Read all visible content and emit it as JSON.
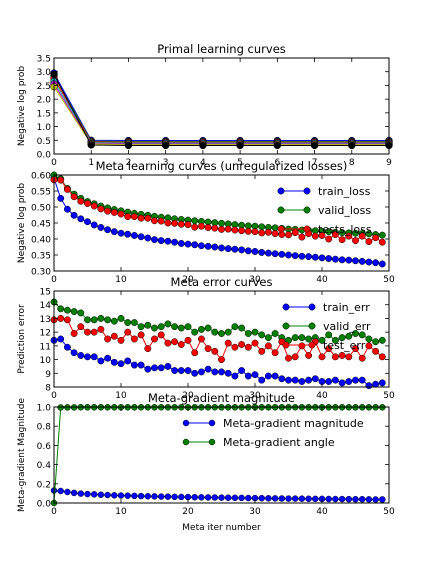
{
  "chart_data": [
    {
      "type": "line",
      "title": "Primal learning curves",
      "xlabel": "",
      "ylabel": "Negative log prob",
      "xlim": [
        0,
        9
      ],
      "ylim": [
        0.0,
        3.5
      ],
      "xticks": [
        0,
        1,
        2,
        3,
        4,
        5,
        6,
        7,
        8,
        9
      ],
      "yticks": [
        0.0,
        0.5,
        1.0,
        1.5,
        2.0,
        2.5,
        3.0,
        3.5
      ],
      "grid": false,
      "colors": [
        "#0000ff",
        "#008000",
        "#ff0000",
        "#00bfbf",
        "#bf00bf",
        "#bfbf00",
        "#000000"
      ],
      "x": [
        0,
        1,
        2,
        3,
        4,
        5,
        6,
        7,
        8,
        9
      ],
      "series": [
        {
          "values": [
            2.95,
            0.5,
            0.49,
            0.49,
            0.49,
            0.49,
            0.49,
            0.49,
            0.49,
            0.49
          ]
        },
        {
          "values": [
            2.85,
            0.47,
            0.46,
            0.46,
            0.46,
            0.46,
            0.46,
            0.46,
            0.46,
            0.46
          ]
        },
        {
          "values": [
            2.75,
            0.44,
            0.43,
            0.43,
            0.43,
            0.43,
            0.43,
            0.43,
            0.43,
            0.43
          ]
        },
        {
          "values": [
            2.65,
            0.41,
            0.4,
            0.4,
            0.4,
            0.4,
            0.4,
            0.4,
            0.4,
            0.4
          ]
        },
        {
          "values": [
            2.55,
            0.38,
            0.37,
            0.37,
            0.37,
            0.37,
            0.37,
            0.37,
            0.37,
            0.37
          ]
        },
        {
          "values": [
            2.45,
            0.36,
            0.34,
            0.34,
            0.34,
            0.34,
            0.34,
            0.34,
            0.34,
            0.34
          ]
        },
        {
          "values": [
            2.9,
            0.33,
            0.31,
            0.31,
            0.31,
            0.31,
            0.31,
            0.31,
            0.31,
            0.31
          ]
        }
      ]
    },
    {
      "type": "line",
      "title": "Meta learning curves (unregularized losses)",
      "xlabel": "",
      "ylabel": "Negative log prob",
      "xlim": [
        0,
        50
      ],
      "ylim": [
        0.3,
        0.6
      ],
      "xticks": [
        0,
        10,
        20,
        30,
        40,
        50
      ],
      "yticks": [
        0.3,
        0.35,
        0.4,
        0.45,
        0.5,
        0.55,
        0.6
      ],
      "grid": false,
      "legend": "upper right",
      "x": [
        0,
        1,
        2,
        3,
        4,
        5,
        6,
        7,
        8,
        9,
        10,
        11,
        12,
        13,
        14,
        15,
        16,
        17,
        18,
        19,
        20,
        21,
        22,
        23,
        24,
        25,
        26,
        27,
        28,
        29,
        30,
        31,
        32,
        33,
        34,
        35,
        36,
        37,
        38,
        39,
        40,
        41,
        42,
        43,
        44,
        45,
        46,
        47,
        48,
        49
      ],
      "series": [
        {
          "name": "train_loss",
          "color": "#0000ff",
          "values": [
            0.59,
            0.527,
            0.493,
            0.474,
            0.463,
            0.454,
            0.444,
            0.436,
            0.429,
            0.423,
            0.418,
            0.415,
            0.411,
            0.407,
            0.403,
            0.398,
            0.395,
            0.393,
            0.39,
            0.386,
            0.384,
            0.382,
            0.379,
            0.377,
            0.375,
            0.372,
            0.37,
            0.368,
            0.366,
            0.363,
            0.361,
            0.358,
            0.356,
            0.354,
            0.352,
            0.35,
            0.348,
            0.346,
            0.345,
            0.343,
            0.341,
            0.339,
            0.337,
            0.335,
            0.334,
            0.332,
            0.33,
            0.328,
            0.326,
            0.322
          ]
        },
        {
          "name": "valid_loss",
          "color": "#008000",
          "values": [
            0.6,
            0.588,
            0.558,
            0.54,
            0.527,
            0.517,
            0.51,
            0.503,
            0.497,
            0.492,
            0.488,
            0.484,
            0.48,
            0.477,
            0.474,
            0.471,
            0.468,
            0.466,
            0.463,
            0.461,
            0.459,
            0.457,
            0.455,
            0.453,
            0.451,
            0.449,
            0.447,
            0.445,
            0.443,
            0.441,
            0.44,
            0.438,
            0.436,
            0.435,
            0.433,
            0.431,
            0.43,
            0.428,
            0.427,
            0.426,
            0.424,
            0.423,
            0.421,
            0.42,
            0.419,
            0.418,
            0.417,
            0.416,
            0.414,
            0.412
          ]
        },
        {
          "name": "tests_loss",
          "color": "#ff0000",
          "values": [
            0.585,
            0.584,
            0.555,
            0.532,
            0.518,
            0.511,
            0.503,
            0.494,
            0.487,
            0.483,
            0.478,
            0.47,
            0.47,
            0.465,
            0.465,
            0.457,
            0.456,
            0.45,
            0.449,
            0.446,
            0.445,
            0.437,
            0.44,
            0.436,
            0.434,
            0.43,
            0.431,
            0.428,
            0.426,
            0.424,
            0.423,
            0.419,
            0.421,
            0.417,
            0.414,
            0.413,
            0.42,
            0.406,
            0.417,
            0.409,
            0.411,
            0.4,
            0.414,
            0.398,
            0.409,
            0.395,
            0.409,
            0.392,
            0.404,
            0.39
          ]
        }
      ]
    },
    {
      "type": "line",
      "title": "Meta error curves",
      "xlabel": "",
      "ylabel": "Prediction error",
      "xlim": [
        0,
        50
      ],
      "ylim": [
        8,
        15
      ],
      "xticks": [
        0,
        10,
        20,
        30,
        40,
        50
      ],
      "yticks": [
        8,
        9,
        10,
        11,
        12,
        13,
        14,
        15
      ],
      "grid": false,
      "legend": "upper right",
      "x": [
        0,
        1,
        2,
        3,
        4,
        5,
        6,
        7,
        8,
        9,
        10,
        11,
        12,
        13,
        14,
        15,
        16,
        17,
        18,
        19,
        20,
        21,
        22,
        23,
        24,
        25,
        26,
        27,
        28,
        29,
        30,
        31,
        32,
        33,
        34,
        35,
        36,
        37,
        38,
        39,
        40,
        41,
        42,
        43,
        44,
        45,
        46,
        47,
        48,
        49
      ],
      "series": [
        {
          "name": "train_err",
          "color": "#0000ff",
          "values": [
            11.4,
            11.5,
            10.9,
            10.5,
            10.3,
            10.2,
            10.2,
            9.9,
            10.1,
            9.8,
            9.7,
            9.9,
            9.6,
            9.6,
            9.3,
            9.4,
            9.4,
            9.5,
            9.2,
            9.2,
            9.2,
            9.0,
            9.1,
            9.3,
            9.1,
            9.1,
            9.0,
            8.8,
            9.2,
            8.8,
            8.9,
            8.5,
            8.8,
            8.8,
            8.6,
            8.5,
            8.5,
            8.4,
            8.5,
            8.6,
            8.4,
            8.4,
            8.5,
            8.3,
            8.4,
            8.5,
            8.5,
            8.1,
            8.2,
            8.3
          ]
        },
        {
          "name": "valid_err",
          "color": "#008000",
          "values": [
            14.2,
            13.7,
            13.6,
            13.5,
            13.4,
            12.9,
            12.9,
            13.0,
            12.9,
            12.8,
            13.0,
            12.7,
            12.7,
            12.4,
            12.5,
            12.3,
            12.4,
            12.6,
            12.4,
            12.3,
            12.4,
            12.0,
            12.2,
            12.3,
            12.0,
            11.9,
            12.0,
            12.4,
            12.3,
            11.9,
            12.0,
            11.8,
            11.6,
            11.9,
            11.6,
            11.4,
            11.6,
            11.6,
            11.5,
            11.6,
            11.4,
            11.8,
            11.4,
            11.6,
            11.7,
            11.9,
            11.8,
            11.5,
            11.3,
            11.4
          ]
        },
        {
          "name": "test_err",
          "color": "#ff0000",
          "values": [
            12.9,
            13.0,
            12.9,
            11.9,
            12.4,
            12.0,
            12.0,
            12.2,
            11.5,
            11.7,
            11.4,
            12.0,
            11.5,
            11.8,
            10.8,
            11.5,
            11.8,
            11.2,
            11.3,
            11.1,
            11.4,
            10.5,
            11.5,
            10.8,
            10.6,
            10.0,
            11.2,
            10.9,
            11.1,
            10.9,
            11.2,
            10.6,
            11.0,
            10.5,
            11.3,
            10.1,
            10.2,
            11.0,
            10.3,
            11.3,
            10.2,
            10.8,
            10.2,
            10.3,
            10.2,
            10.8,
            10.1,
            11.0,
            10.6,
            10.2
          ]
        }
      ]
    },
    {
      "type": "line",
      "title": "Meta-gradient magnitude",
      "xlabel": "Meta iter number",
      "ylabel": "Meta-gradient Magnitude",
      "xlim": [
        0,
        50
      ],
      "ylim": [
        0.0,
        1.0
      ],
      "xticks": [
        0,
        10,
        20,
        30,
        40,
        50
      ],
      "yticks": [
        0.0,
        0.2,
        0.4,
        0.6,
        0.8,
        1.0
      ],
      "grid": false,
      "legend": "upper right",
      "x": [
        0,
        1,
        2,
        3,
        4,
        5,
        6,
        7,
        8,
        9,
        10,
        11,
        12,
        13,
        14,
        15,
        16,
        17,
        18,
        19,
        20,
        21,
        22,
        23,
        24,
        25,
        26,
        27,
        28,
        29,
        30,
        31,
        32,
        33,
        34,
        35,
        36,
        37,
        38,
        39,
        40,
        41,
        42,
        43,
        44,
        45,
        46,
        47,
        48,
        49
      ],
      "series": [
        {
          "name": "Meta-gradient magnitude",
          "color": "#0000ff",
          "values": [
            0.13,
            0.125,
            0.115,
            0.105,
            0.098,
            0.093,
            0.09,
            0.086,
            0.083,
            0.08,
            0.078,
            0.076,
            0.074,
            0.072,
            0.07,
            0.069,
            0.067,
            0.066,
            0.064,
            0.063,
            0.062,
            0.06,
            0.059,
            0.058,
            0.057,
            0.056,
            0.055,
            0.054,
            0.053,
            0.052,
            0.051,
            0.05,
            0.049,
            0.048,
            0.047,
            0.046,
            0.046,
            0.045,
            0.044,
            0.043,
            0.043,
            0.042,
            0.041,
            0.041,
            0.04,
            0.039,
            0.039,
            0.038,
            0.037,
            0.037
          ]
        },
        {
          "name": "Meta-gradient angle",
          "color": "#008000",
          "values": [
            0.0,
            0.995,
            0.996,
            0.996,
            0.997,
            0.997,
            0.997,
            0.997,
            0.997,
            0.997,
            0.997,
            0.997,
            0.997,
            0.997,
            0.997,
            0.997,
            0.997,
            0.997,
            0.997,
            0.997,
            0.997,
            0.997,
            0.997,
            0.997,
            0.997,
            0.997,
            0.997,
            0.997,
            0.997,
            0.997,
            0.997,
            0.997,
            0.997,
            0.997,
            0.997,
            0.997,
            0.997,
            0.997,
            0.997,
            0.997,
            0.997,
            0.997,
            0.997,
            0.997,
            0.997,
            0.997,
            0.997,
            0.997,
            0.997,
            0.997
          ]
        }
      ]
    }
  ]
}
